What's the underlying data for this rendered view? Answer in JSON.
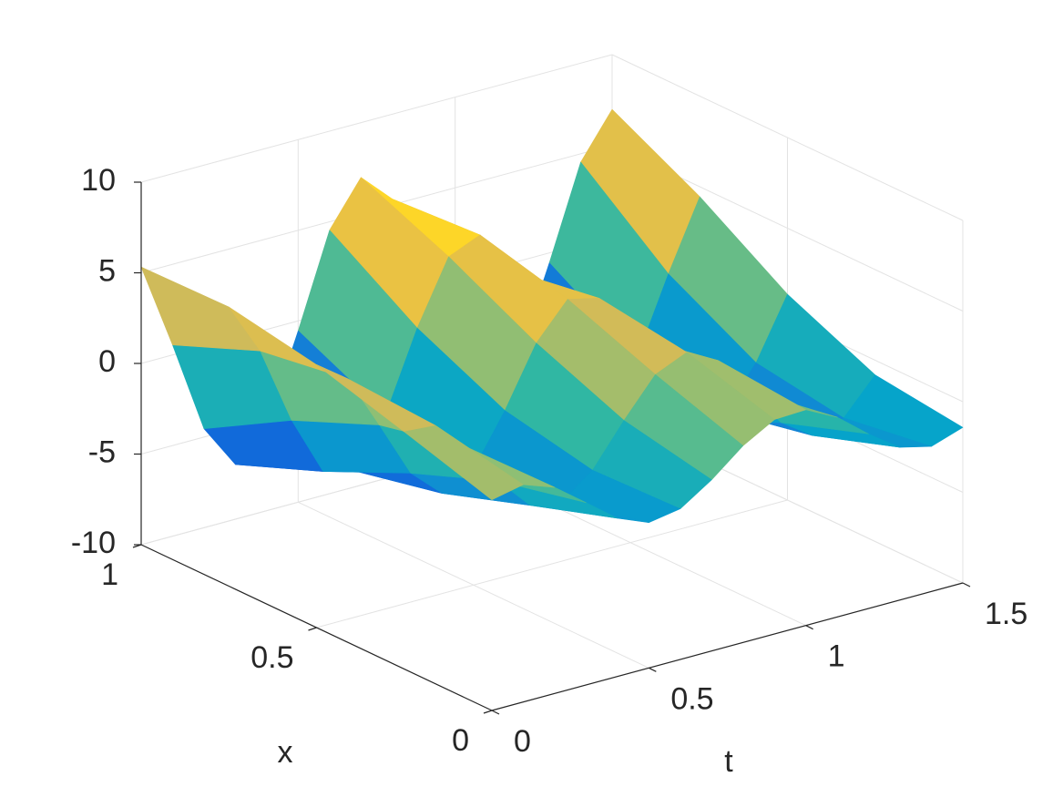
{
  "chart_data": {
    "type": "surface",
    "xlabel": "x",
    "tlabel": "t",
    "x": [
      0,
      0.25,
      0.5,
      0.75,
      1
    ],
    "t": [
      0,
      0.1,
      0.2,
      0.3,
      0.4,
      0.5,
      0.6,
      0.7,
      0.8,
      0.9,
      1.0,
      1.1,
      1.2,
      1.3,
      1.4,
      1.5
    ],
    "z": [
      [
        1.62,
        1.99,
        1.37,
        0.06,
        -1.27,
        -1.98,
        -1.69,
        -0.56,
        0.85,
        1.83,
        1.9,
        1.02,
        -0.37,
        -1.58,
        -2.0,
        -1.42
      ],
      [
        3.09,
        2.96,
        1.3,
        -1.04,
        -2.84,
        -3.16,
        -1.85,
        0.43,
        2.49,
        3.25,
        2.33,
        0.2,
        -2.03,
        -3.21,
        -2.72,
        -0.81
      ],
      [
        4.5,
        3.25,
        0.24,
        -2.89,
        -4.47,
        -3.63,
        -0.84,
        2.41,
        4.36,
        3.95,
        1.4,
        -1.89,
        -4.17,
        -4.2,
        -1.96,
        1.35
      ],
      [
        5.4,
        2.51,
        -1.79,
        -5.08,
        -5.52,
        -2.86,
        1.42,
        4.89,
        5.62,
        3.18,
        -1.04,
        -4.67,
        -5.69,
        -3.5,
        0.66,
        4.45
      ],
      [
        5.32,
        0.55,
        -4.54,
        -6.98,
        -5.32,
        -0.55,
        4.54,
        6.98,
        5.32,
        0.55,
        -4.54,
        -6.98,
        -5.32,
        -0.55,
        4.54,
        6.98
      ]
    ],
    "xlim": [
      0,
      1
    ],
    "xticks": [
      0,
      0.5,
      1
    ],
    "tlim": [
      0,
      1.5
    ],
    "tticks": [
      0,
      0.5,
      1,
      1.5
    ],
    "zlim": [
      -10,
      10
    ],
    "zticks": [
      -10,
      -5,
      0,
      5,
      10
    ],
    "grid": true,
    "colormap": [
      "#352a87",
      "#0f5cdd",
      "#1481d6",
      "#06a4ca",
      "#2eb7a4",
      "#87bf77",
      "#d1bb59",
      "#fec832",
      "#f9fb0e"
    ]
  }
}
